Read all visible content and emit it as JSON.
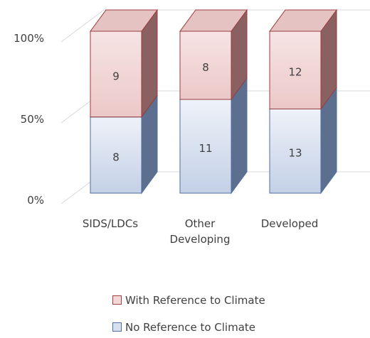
{
  "chart_data": {
    "type": "bar",
    "stacked": true,
    "percent_stacked": true,
    "three_d": true,
    "categories": [
      "SIDS/LDCs",
      "Other\nDeveloping",
      "Developed"
    ],
    "series": [
      {
        "name": "No Reference to Climate",
        "values": [
          8,
          11,
          13
        ],
        "color": "#d6e0ef"
      },
      {
        "name": "With Reference to Climate",
        "values": [
          9,
          8,
          12
        ],
        "color": "#f2d8d8"
      }
    ],
    "y_ticks": [
      "0%",
      "50%",
      "100%"
    ],
    "ylim": [
      0,
      100
    ],
    "grid": true,
    "legend_position": "bottom"
  }
}
